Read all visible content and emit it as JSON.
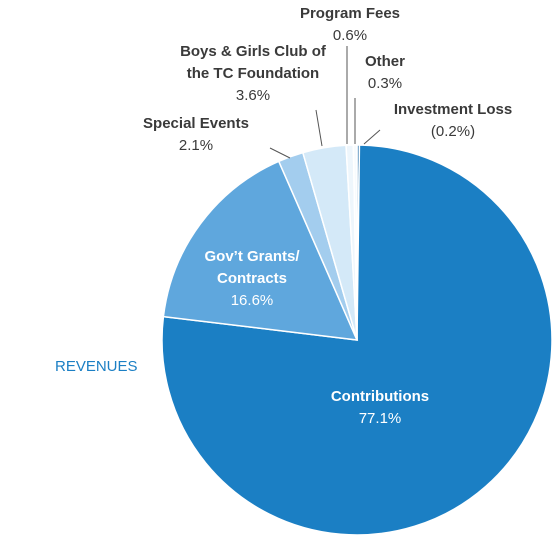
{
  "chart_data": {
    "type": "pie",
    "title": "REVENUES",
    "categories": [
      "Investment Loss",
      "Contributions",
      "Gov’t Grants/ Contracts",
      "Special Events",
      "Boys & Girls Club of the TC Foundation",
      "Program Fees",
      "Other"
    ],
    "values": [
      -0.2,
      77.1,
      16.6,
      2.1,
      3.6,
      0.6,
      0.3
    ],
    "value_labels": [
      "(0.2%)",
      "77.1%",
      "16.6%",
      "2.1%",
      "3.6%",
      "0.6%",
      "0.3%"
    ],
    "colors": [
      "#1a68a6",
      "#1b7fc4",
      "#5fa7dd",
      "#a3cdee",
      "#d4e9f8",
      "#eef6fc",
      "#f7fbfe"
    ]
  }
}
